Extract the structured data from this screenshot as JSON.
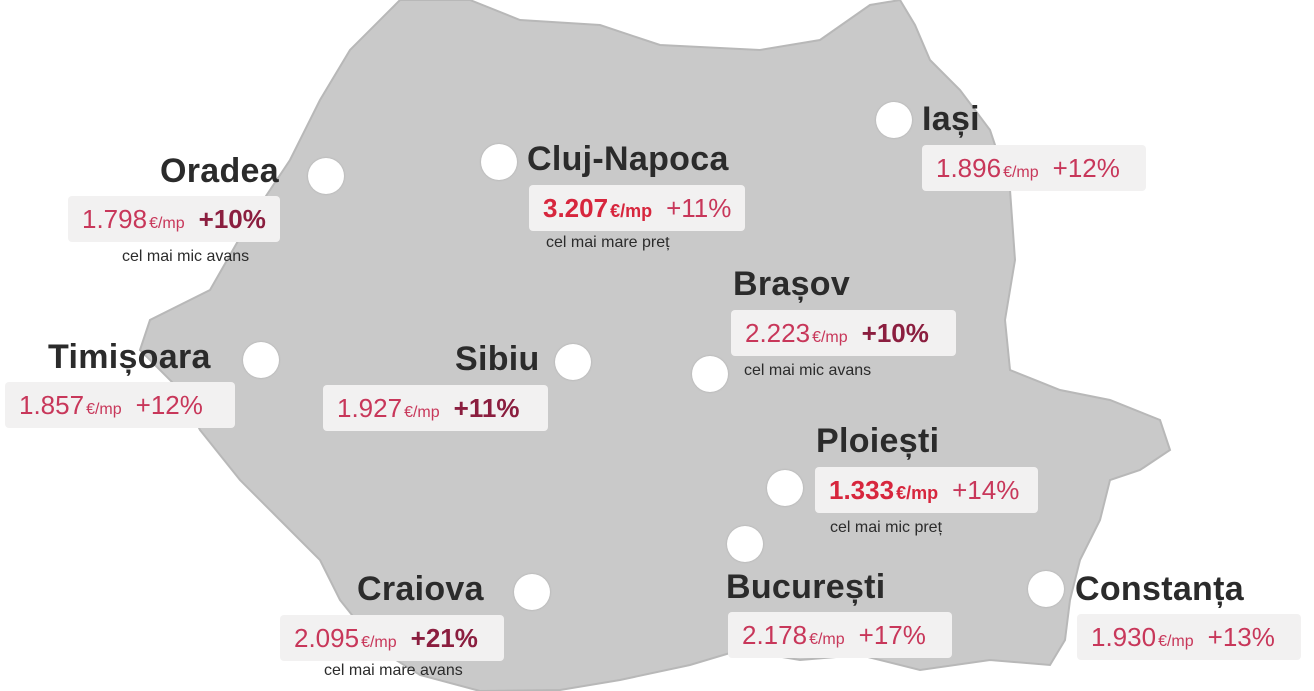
{
  "cities": [
    {
      "id": "oradea",
      "name": "Oradea",
      "price": "1.798",
      "unit": "€/mp",
      "change": "+10%",
      "change_bold": true,
      "note": "cel mai mic avans"
    },
    {
      "id": "cluj",
      "name": "Cluj-Napoca",
      "price": "3.207",
      "unit": "€/mp",
      "change": "+11%",
      "price_highlight": true,
      "note": "cel mai mare preț"
    },
    {
      "id": "iasi",
      "name": "Iași",
      "price": "1.896",
      "unit": "€/mp",
      "change": "+12%"
    },
    {
      "id": "brasov",
      "name": "Brașov",
      "price": "2.223",
      "unit": "€/mp",
      "change": "+10%",
      "change_bold": true,
      "note": "cel mai mic avans"
    },
    {
      "id": "timisoara",
      "name": "Timișoara",
      "price": "1.857",
      "unit": "€/mp",
      "change": "+12%"
    },
    {
      "id": "sibiu",
      "name": "Sibiu",
      "price": "1.927",
      "unit": "€/mp",
      "change": "+11%",
      "change_bold": true
    },
    {
      "id": "ploiesti",
      "name": "Ploiești",
      "price": "1.333",
      "unit": "€/mp",
      "change": "+14%",
      "price_highlight": true,
      "note": "cel mai mic preț"
    },
    {
      "id": "craiova",
      "name": "Craiova",
      "price": "2.095",
      "unit": "€/mp",
      "change": "+21%",
      "change_bold": true,
      "note": "cel mai mare avans"
    },
    {
      "id": "bucuresti",
      "name": "București",
      "price": "2.178",
      "unit": "€/mp",
      "change": "+17%"
    },
    {
      "id": "constanta",
      "name": "Constanța",
      "price": "1.930",
      "unit": "€/mp",
      "change": "+13%"
    }
  ],
  "colors": {
    "map_fill": "#c9c9c9",
    "price": "#c8375a",
    "price_highlight": "#d7263d",
    "change_bold": "#8b1e3f",
    "label_box": "#f2f1f1"
  }
}
